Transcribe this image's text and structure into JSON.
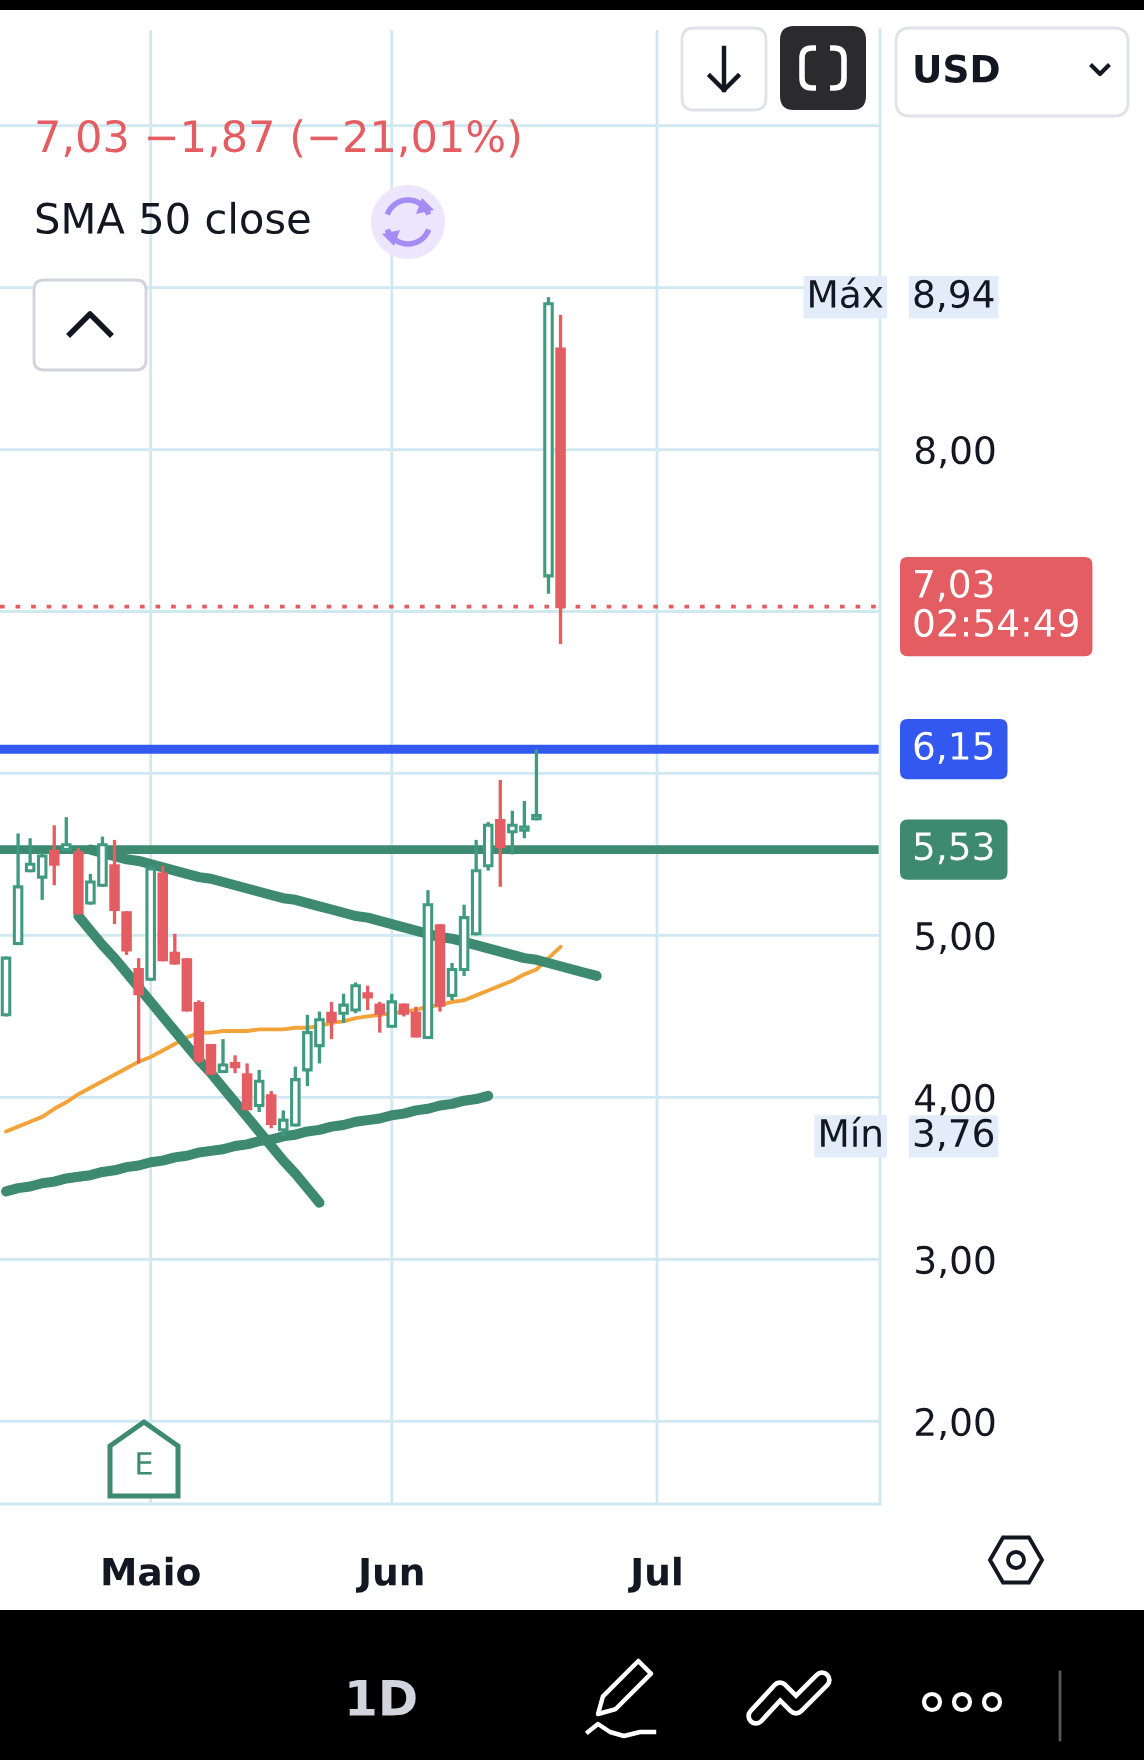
{
  "chart_data": {
    "type": "candlestick",
    "title": "7,03 −1,87 (−21,01%)",
    "subtitle": "SMA 50 close",
    "categories": [
      null,
      null,
      null,
      null,
      null,
      null,
      null,
      null,
      null,
      null,
      null,
      null,
      "Maio",
      null,
      null,
      null,
      null,
      null,
      null,
      null,
      null,
      null,
      null,
      null,
      null,
      null,
      null,
      null,
      null,
      null,
      null,
      null,
      "Jun",
      null,
      null,
      null,
      null,
      null,
      null,
      null,
      null,
      null,
      null,
      null,
      null,
      null,
      null,
      null,
      null,
      null,
      null,
      null,
      null,
      null,
      "Jul",
      null,
      null,
      null,
      null,
      null,
      null,
      null,
      null,
      null,
      null,
      null,
      null,
      null,
      null,
      null,
      null,
      null,
      null
    ],
    "ohlc": [
      [
        4.51,
        4.87,
        4.5,
        4.86
      ],
      [
        4.95,
        5.63,
        4.94,
        5.3
      ],
      [
        5.4,
        5.6,
        5.39,
        5.44
      ],
      [
        5.36,
        5.51,
        5.22,
        5.49
      ],
      [
        5.52,
        5.68,
        5.31,
        5.44
      ],
      [
        5.53,
        5.73,
        5.52,
        5.56
      ],
      [
        5.51,
        5.54,
        5.13,
        5.14
      ],
      [
        5.2,
        5.38,
        5.19,
        5.33
      ],
      [
        5.31,
        5.61,
        5.3,
        5.56
      ],
      [
        5.43,
        5.59,
        5.07,
        5.16
      ],
      [
        5.14,
        5.15,
        4.88,
        4.91
      ],
      [
        4.79,
        4.86,
        4.21,
        4.64
      ],
      [
        4.73,
        5.43,
        4.72,
        5.41
      ],
      [
        5.38,
        5.43,
        4.84,
        4.85
      ],
      [
        4.89,
        5.01,
        4.82,
        4.83
      ],
      [
        4.85,
        4.86,
        4.53,
        4.54
      ],
      [
        4.58,
        4.6,
        4.21,
        4.23
      ],
      [
        4.32,
        4.33,
        4.14,
        4.15
      ],
      [
        4.16,
        4.36,
        4.15,
        4.2
      ],
      [
        4.21,
        4.26,
        4.15,
        4.19
      ],
      [
        4.14,
        4.21,
        3.92,
        3.93
      ],
      [
        3.95,
        4.17,
        3.91,
        4.1
      ],
      [
        4.01,
        4.04,
        3.81,
        3.84
      ],
      [
        3.8,
        3.92,
        3.76,
        3.86
      ],
      [
        3.83,
        4.19,
        3.82,
        4.11
      ],
      [
        4.17,
        4.51,
        4.07,
        4.4
      ],
      [
        4.32,
        4.53,
        4.21,
        4.48
      ],
      [
        4.52,
        4.59,
        4.36,
        4.47
      ],
      [
        4.52,
        4.64,
        4.46,
        4.57
      ],
      [
        4.54,
        4.71,
        4.52,
        4.69
      ],
      [
        4.64,
        4.69,
        4.54,
        4.62
      ],
      [
        4.57,
        4.59,
        4.4,
        4.52
      ],
      [
        4.44,
        4.64,
        4.43,
        4.59
      ],
      [
        4.57,
        4.58,
        4.5,
        4.52
      ],
      [
        4.52,
        4.56,
        4.37,
        4.38
      ],
      [
        4.37,
        5.28,
        4.36,
        5.19
      ],
      [
        5.06,
        5.07,
        4.53,
        4.57
      ],
      [
        4.63,
        4.83,
        4.6,
        4.79
      ],
      [
        4.79,
        5.19,
        4.75,
        5.11
      ],
      [
        5.01,
        5.59,
        5.0,
        5.4
      ],
      [
        5.43,
        5.7,
        5.4,
        5.68
      ],
      [
        5.71,
        5.96,
        5.3,
        5.55
      ],
      [
        5.64,
        5.77,
        5.5,
        5.68
      ],
      [
        5.65,
        5.83,
        5.6,
        5.67
      ],
      [
        5.72,
        6.15,
        5.71,
        5.74
      ],
      [
        7.22,
        8.94,
        7.11,
        8.9
      ],
      [
        8.62,
        8.83,
        6.8,
        7.03
      ],
      null,
      null,
      null,
      null,
      null,
      null,
      null,
      null,
      null,
      null,
      null,
      null,
      null,
      null,
      null,
      null,
      null,
      null,
      null,
      null,
      null,
      null,
      null,
      null,
      null,
      null
    ],
    "colors": [
      "#3f9a7e",
      "#3f9a7e",
      "#3f9a7e",
      "#3f9a7e",
      "#e35d62",
      "#3f9a7e",
      "#e35d62",
      "#3f9a7e",
      "#3f9a7e",
      "#e35d62",
      "#e35d62",
      "#e35d62",
      "#3f9a7e",
      "#e35d62",
      "#e35d62",
      "#e35d62",
      "#e35d62",
      "#e35d62",
      "#3f9a7e",
      "#e35d62",
      "#e35d62",
      "#3f9a7e",
      "#e35d62",
      "#3f9a7e",
      "#3f9a7e",
      "#3f9a7e",
      "#3f9a7e",
      "#e35d62",
      "#3f9a7e",
      "#3f9a7e",
      "#e35d62",
      "#e35d62",
      "#3f9a7e",
      "#e35d62",
      "#e35d62",
      "#3f9a7e",
      "#e35d62",
      "#3f9a7e",
      "#3f9a7e",
      "#3f9a7e",
      "#3f9a7e",
      "#e35d62",
      "#3f9a7e",
      "#3f9a7e",
      "#3f9a7e",
      "#3f9a7e",
      "#e35d62",
      null,
      null,
      null,
      null,
      null,
      null,
      null,
      null,
      null,
      null,
      null,
      null,
      null,
      null,
      null,
      null,
      null,
      null,
      null,
      null,
      null,
      null,
      null,
      null,
      null,
      null
    ],
    "series": [
      {
        "type": "line",
        "color": "#f2a33a",
        "values": [
          3.79,
          3.82,
          3.85,
          3.88,
          3.93,
          3.97,
          4.02,
          4.06,
          4.1,
          4.14,
          4.18,
          4.22,
          4.25,
          4.29,
          4.33,
          4.37,
          4.4,
          4.4,
          4.41,
          4.41,
          4.41,
          4.42,
          4.42,
          4.42,
          4.43,
          4.43,
          4.44,
          4.46,
          4.47,
          4.49,
          4.5,
          4.51,
          4.52,
          4.53,
          4.54,
          4.56,
          4.57,
          4.59,
          4.6,
          4.63,
          4.66,
          4.69,
          4.72,
          4.76,
          4.79,
          4.86,
          4.93,
          null,
          null,
          null,
          null,
          null,
          null,
          null,
          null,
          null,
          null,
          null,
          null,
          null,
          null,
          null,
          null,
          null,
          null,
          null,
          null,
          null,
          null,
          null,
          null,
          null,
          null
        ]
      },
      {
        "type": "line",
        "color": "#3d8a70",
        "values": [
          null,
          null,
          null,
          null,
          null,
          null,
          null,
          5.53,
          5.51,
          5.49,
          5.47,
          5.46,
          5.44,
          5.42,
          5.4,
          5.38,
          5.36,
          5.35,
          5.33,
          5.31,
          5.29,
          5.27,
          5.25,
          5.23,
          5.22,
          5.2,
          5.18,
          5.16,
          5.14,
          5.12,
          5.11,
          5.09,
          5.07,
          5.05,
          5.03,
          5.01,
          4.99,
          4.98,
          4.96,
          4.94,
          4.92,
          4.9,
          4.88,
          4.86,
          4.85,
          4.83,
          4.81,
          4.79,
          4.77,
          4.75,
          null,
          null,
          null,
          null,
          null,
          null,
          null,
          null,
          null,
          null,
          null,
          null,
          null,
          null,
          null,
          null,
          null,
          null,
          null,
          null,
          null,
          null,
          null
        ]
      },
      {
        "type": "line",
        "color": "#3d8a70",
        "values": [
          null,
          null,
          null,
          null,
          null,
          null,
          5.12,
          5.03,
          4.94,
          4.86,
          4.77,
          4.68,
          4.59,
          4.5,
          4.41,
          4.32,
          4.23,
          4.15,
          4.06,
          3.97,
          3.88,
          3.79,
          3.7,
          3.61,
          3.53,
          3.44,
          3.35,
          null,
          null,
          null,
          null,
          null,
          null,
          null,
          null,
          null,
          null,
          null,
          null,
          null,
          null,
          null,
          null,
          null,
          null,
          null,
          null,
          null,
          null,
          null,
          null,
          null,
          null,
          null,
          null,
          null,
          null,
          null,
          null,
          null,
          null,
          null,
          null,
          null,
          null,
          null,
          null,
          null,
          null,
          null,
          null,
          null,
          null
        ]
      },
      {
        "type": "line",
        "color": "#3d8a70",
        "values": [
          3.42,
          3.44,
          3.45,
          3.47,
          3.48,
          3.5,
          3.51,
          3.52,
          3.54,
          3.55,
          3.57,
          3.58,
          3.6,
          3.61,
          3.63,
          3.64,
          3.66,
          3.67,
          3.68,
          3.7,
          3.71,
          3.73,
          3.74,
          3.76,
          3.77,
          3.79,
          3.8,
          3.82,
          3.83,
          3.85,
          3.86,
          3.87,
          3.89,
          3.9,
          3.92,
          3.93,
          3.95,
          3.96,
          3.98,
          3.99,
          4.01,
          null,
          null,
          null,
          null,
          null,
          null,
          null,
          null,
          null,
          null,
          null,
          null,
          null,
          null,
          null,
          null,
          null,
          null,
          null,
          null,
          null,
          null,
          null,
          null,
          null,
          null,
          null,
          null,
          null,
          null,
          null,
          null
        ]
      }
    ],
    "ylim": [
      1.49,
      10.59
    ],
    "yticks": [
      {
        "value": 2,
        "label": "2,00"
      },
      {
        "value": 3,
        "label": "3,00"
      },
      {
        "value": 4,
        "label": "4,00"
      },
      {
        "value": 5,
        "label": "5,00"
      },
      {
        "value": 6,
        "label": null
      },
      {
        "value": 7,
        "label": null
      },
      {
        "value": 8,
        "label": "8,00"
      },
      {
        "value": 9,
        "label": null
      },
      {
        "value": 10,
        "label": null
      }
    ],
    "ref_lines": [
      {
        "axis": "y",
        "value": 6.15,
        "label": "6,15",
        "color": "#3358f0",
        "line_style": "solid"
      },
      {
        "axis": "y",
        "value": 5.53,
        "label": "5,53",
        "color": "#3d8a70",
        "line_style": "solid"
      },
      {
        "axis": "y",
        "value": 7.03,
        "label": "7,03\n02:54:49",
        "color": "#e35d62",
        "line_style": "dotted"
      }
    ],
    "annotations": [
      "Máx 8,94",
      "Mín 3,76",
      "USD",
      "1D",
      "E"
    ],
    "grid": true
  }
}
